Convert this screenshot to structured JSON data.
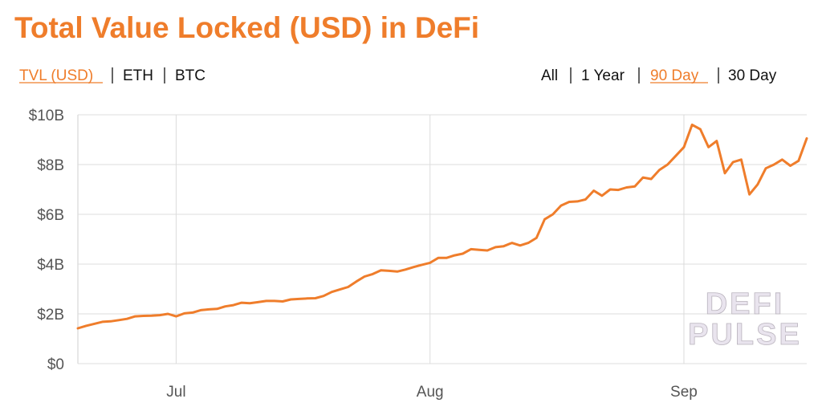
{
  "tabs_left": [
    "TVL (USD)",
    "ETH",
    "BTC"
  ],
  "tabs_right": [
    "All",
    "1 Year",
    "90 Day",
    "30 Day"
  ],
  "watermark": [
    "DEFI",
    "PULSE"
  ],
  "chart_data": {
    "type": "line",
    "title": "Total Value Locked (USD) in DeFi",
    "categories": [
      null,
      null,
      null,
      null,
      null,
      null,
      null,
      null,
      null,
      null,
      null,
      null,
      "Jul",
      null,
      null,
      null,
      null,
      null,
      null,
      null,
      null,
      null,
      null,
      null,
      null,
      null,
      null,
      null,
      null,
      null,
      null,
      null,
      null,
      null,
      null,
      null,
      null,
      null,
      null,
      null,
      null,
      null,
      null,
      "Aug",
      null,
      null,
      null,
      null,
      null,
      null,
      null,
      null,
      null,
      null,
      null,
      null,
      null,
      null,
      null,
      null,
      null,
      null,
      null,
      null,
      null,
      null,
      null,
      null,
      null,
      null,
      null,
      null,
      null,
      null,
      "Sep",
      null,
      null,
      null,
      null,
      null,
      null,
      null,
      null,
      null,
      null,
      null,
      null,
      null,
      null,
      null
    ],
    "values": [
      1.42,
      1.52,
      1.6,
      1.68,
      1.7,
      1.75,
      1.8,
      1.9,
      1.92,
      1.93,
      1.95,
      2.0,
      1.9,
      2.02,
      2.05,
      2.15,
      2.18,
      2.2,
      2.3,
      2.35,
      2.45,
      2.43,
      2.47,
      2.52,
      2.52,
      2.5,
      2.58,
      2.6,
      2.62,
      2.63,
      2.72,
      2.88,
      2.98,
      3.08,
      3.3,
      3.5,
      3.6,
      3.75,
      3.73,
      3.7,
      3.78,
      3.88,
      3.97,
      4.05,
      4.25,
      4.25,
      4.35,
      4.42,
      4.6,
      4.57,
      4.55,
      4.68,
      4.72,
      4.85,
      4.75,
      4.85,
      5.05,
      5.8,
      6.0,
      6.35,
      6.5,
      6.52,
      6.6,
      6.95,
      6.75,
      7.0,
      6.98,
      7.08,
      7.12,
      7.48,
      7.42,
      7.78,
      8.0,
      8.35,
      8.7,
      9.6,
      9.42,
      8.7,
      8.95,
      7.65,
      8.1,
      8.2,
      6.8,
      7.2,
      7.85,
      8.0,
      8.2,
      7.95,
      8.15,
      9.05
    ],
    "color": "#ef7d2b",
    "ylim": [
      0,
      10
    ],
    "yticks": [
      {
        "value": 0,
        "label": "$0"
      },
      {
        "value": 2,
        "label": "$2B"
      },
      {
        "value": 4,
        "label": "$4B"
      },
      {
        "value": 6,
        "label": "$6B"
      },
      {
        "value": 8,
        "label": "$8B"
      },
      {
        "value": 10,
        "label": "$10B"
      }
    ],
    "grid": true
  }
}
